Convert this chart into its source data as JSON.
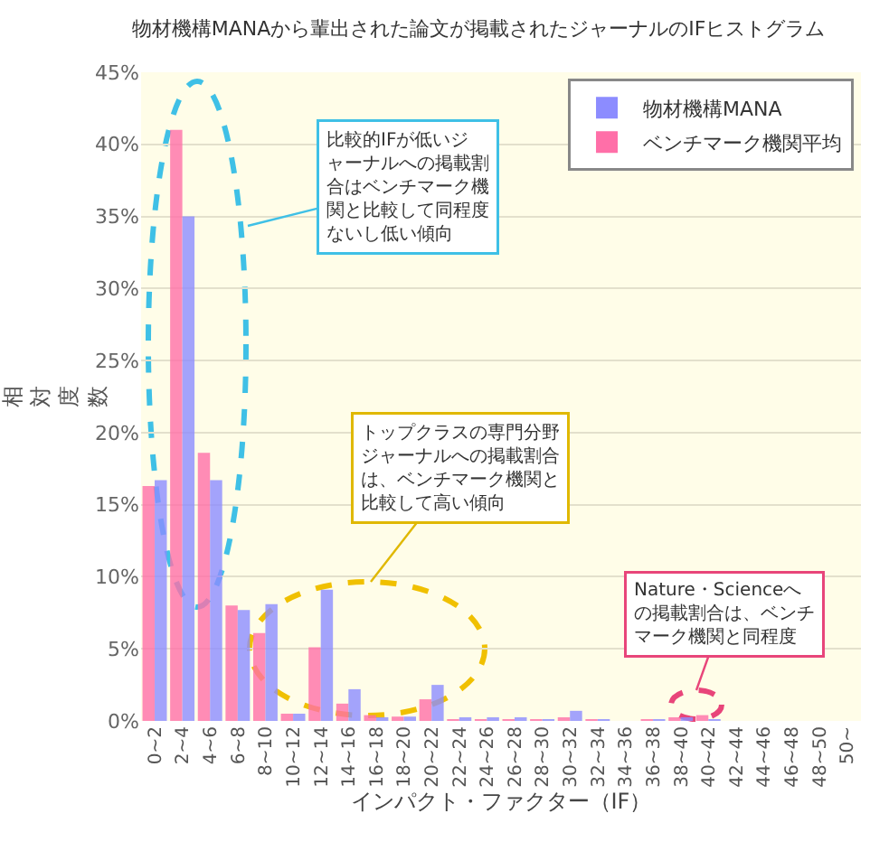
{
  "chart_data": {
    "type": "bar",
    "title": "物材機構MANAから輩出された論文が掲載されたジャーナルのIFヒストグラム",
    "xlabel": "インパクト・ファクター（IF）",
    "ylabel": "相対度数",
    "categories": [
      "0~2",
      "2~4",
      "4~6",
      "6~8",
      "8~10",
      "10~12",
      "12~14",
      "14~16",
      "16~18",
      "18~20",
      "20~22",
      "22~24",
      "24~26",
      "26~28",
      "28~30",
      "30~32",
      "32~34",
      "34~36",
      "36~38",
      "38~40",
      "40~42",
      "42~44",
      "44~46",
      "46~48",
      "48~50",
      "50~"
    ],
    "series": [
      {
        "name": "ベンチマーク機関平均",
        "color": "#ff6fa8",
        "values": [
          16.3,
          41,
          18.6,
          8,
          6.1,
          0.5,
          5.1,
          1.2,
          0.4,
          0.3,
          1.5,
          0.1,
          0.1,
          0.1,
          0.1,
          0.2,
          0.1,
          0,
          0.1,
          0.2,
          0.4,
          0,
          0,
          0,
          0,
          0
        ]
      },
      {
        "name": "物材機構MANA",
        "color": "#8c8cff",
        "values": [
          16.7,
          35,
          16.7,
          7.7,
          8.1,
          0.5,
          9.1,
          2.2,
          0.2,
          0.3,
          2.5,
          0.2,
          0.2,
          0.2,
          0.1,
          0.7,
          0.1,
          0,
          0.1,
          0.2,
          0.1,
          0,
          0,
          0,
          0,
          0
        ]
      }
    ],
    "ylim": [
      0,
      45
    ],
    "yticks": [
      {
        "value": 0,
        "label": "0%"
      },
      {
        "value": 5,
        "label": "5%"
      },
      {
        "value": 10,
        "label": "10%"
      },
      {
        "value": 15,
        "label": "15%"
      },
      {
        "value": 20,
        "label": "20%"
      },
      {
        "value": 25,
        "label": "25%"
      },
      {
        "value": 30,
        "label": "30%"
      },
      {
        "value": 35,
        "label": "35%"
      },
      {
        "value": 40,
        "label": "40%"
      },
      {
        "value": 45,
        "label": "45%"
      }
    ],
    "grid": "y",
    "legend": "top right",
    "annotations": [
      "比較的IFが低いジャーナルへの掲載割合はベンチマーク機関と比較して同程度ないし低い傾向",
      "トップクラスの専門分野ジャーナルへの掲載割合は、ベンチマーク機関と比較して高い傾向",
      "Nature・Scienceへの掲載割合は、ベンチマーク機関と同程度"
    ]
  }
}
